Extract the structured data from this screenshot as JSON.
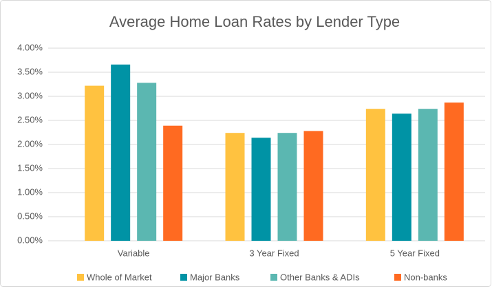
{
  "chart_data": {
    "type": "bar",
    "title": "Average Home Loan Rates by Lender Type",
    "categories": [
      "Variable",
      "3 Year Fixed",
      "5 Year Fixed"
    ],
    "series": [
      {
        "name": "Whole of Market",
        "color": "#FFC240",
        "values": [
          3.22,
          2.24,
          2.74
        ]
      },
      {
        "name": "Major Banks",
        "color": "#0093A5",
        "values": [
          3.66,
          2.14,
          2.64
        ]
      },
      {
        "name": "Other Banks & ADIs",
        "color": "#5BB7B1",
        "values": [
          3.28,
          2.24,
          2.74
        ]
      },
      {
        "name": "Non-banks",
        "color": "#FF6A21",
        "values": [
          2.39,
          2.28,
          2.87
        ]
      }
    ],
    "ylim": [
      0,
      4
    ],
    "yticks": [
      {
        "value": 0,
        "label": "0.00%"
      },
      {
        "value": 0.5,
        "label": "0.50%"
      },
      {
        "value": 1,
        "label": "1.00%"
      },
      {
        "value": 1.5,
        "label": "1.50%"
      },
      {
        "value": 2,
        "label": "2.00%"
      },
      {
        "value": 2.5,
        "label": "2.50%"
      },
      {
        "value": 3,
        "label": "3.00%"
      },
      {
        "value": 3.5,
        "label": "3.50%"
      },
      {
        "value": 4,
        "label": "4.00%"
      }
    ],
    "grid": true,
    "legend": "bottom"
  }
}
